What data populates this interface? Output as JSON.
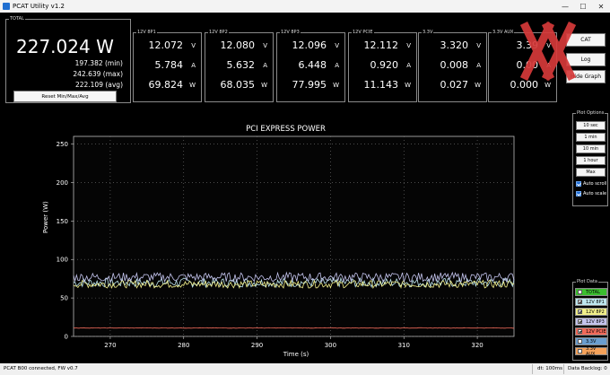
{
  "window": {
    "title": "PCAT Utility v1.2",
    "minimize": "—",
    "maximize": "☐",
    "close": "✕"
  },
  "total": {
    "label": "TOTAL",
    "power": "227.024 W",
    "min": "197.382 (min)",
    "max": "242.639 (max)",
    "avg": "222.109 (avg)",
    "reset_label": "Reset Min/Max/Avg"
  },
  "rails": [
    {
      "label": "12V 8P1",
      "volts": "12.072",
      "amps": "5.784",
      "watts": "69.824"
    },
    {
      "label": "12V 8P2",
      "volts": "12.080",
      "amps": "5.632",
      "watts": "68.035"
    },
    {
      "label": "12V 8P3",
      "volts": "12.096",
      "amps": "6.448",
      "watts": "77.995"
    },
    {
      "label": "12V PCIE",
      "volts": "12.112",
      "amps": "0.920",
      "watts": "11.143"
    },
    {
      "label": "3.3V",
      "volts": "3.320",
      "amps": "0.008",
      "watts": "0.027"
    },
    {
      "label": "3.3V AUX",
      "volts": "3.39",
      "amps": "0.00",
      "watts": "0.000"
    }
  ],
  "units": {
    "v": "V",
    "a": "A",
    "w": "W"
  },
  "side_buttons": [
    "CAT",
    "Log",
    "Hide Graph"
  ],
  "plot_options": {
    "label": "Plot Options",
    "buttons": [
      "10 sec",
      "1 min",
      "10 min",
      "1 hour",
      "Max"
    ],
    "auto_scroll": "Auto scroll",
    "auto_scale": "Auto scale"
  },
  "plot_data": {
    "label": "Plot Data",
    "items": [
      {
        "name": "TOTAL",
        "color": "#3bbf2f",
        "checked": false
      },
      {
        "name": "12V 8P1",
        "color": "#bfe8f0",
        "checked": true
      },
      {
        "name": "12V 8P2",
        "color": "#f2f08a",
        "checked": true
      },
      {
        "name": "12V 8P3",
        "color": "#c4c4ee",
        "checked": true
      },
      {
        "name": "12V PCIE",
        "color": "#f06a5a",
        "checked": true
      },
      {
        "name": "3.3V",
        "color": "#6a9ecf",
        "checked": false
      },
      {
        "name": "3.3V AUX",
        "color": "#f5a25a",
        "checked": false
      }
    ]
  },
  "status": {
    "connection": "PCAT B00 connected, FW v0.7",
    "dt": "dt: 100ms",
    "backlog": "Data Backlog: 0"
  },
  "chart_data": {
    "type": "line",
    "title": "PCI EXPRESS POWER",
    "xlabel": "Time (s)",
    "ylabel": "Power (W)",
    "xlim": [
      265,
      325
    ],
    "ylim": [
      0,
      260
    ],
    "xticks": [
      270,
      280,
      290,
      300,
      310,
      320
    ],
    "yticks": [
      0,
      50,
      100,
      150,
      200,
      250
    ],
    "grid": true,
    "series": [
      {
        "name": "12V 8P1",
        "color": "#bfe8f0",
        "mean": 70,
        "spread": 6
      },
      {
        "name": "12V 8P2",
        "color": "#f2f08a",
        "mean": 68,
        "spread": 5
      },
      {
        "name": "12V 8P3",
        "color": "#c4c4ee",
        "mean": 77,
        "spread": 6
      },
      {
        "name": "12V PCIE",
        "color": "#f06a5a",
        "mean": 11,
        "spread": 0.3
      }
    ]
  }
}
